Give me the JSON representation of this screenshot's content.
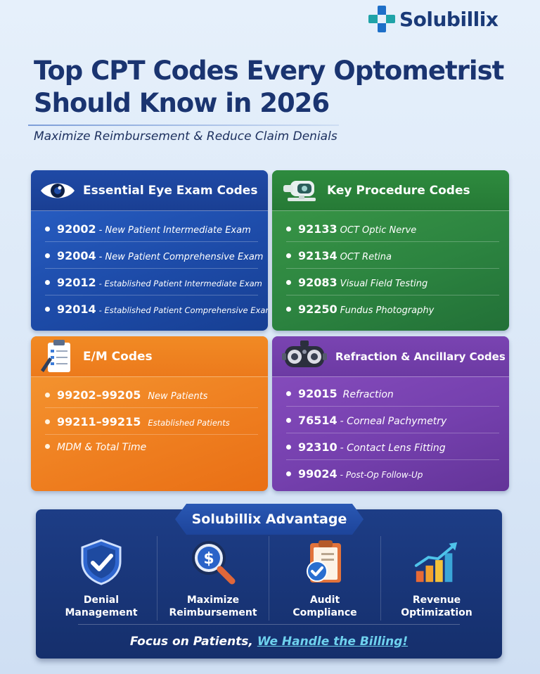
{
  "brand": {
    "name": "Solubillix"
  },
  "title": {
    "line1": "Top CPT Codes Every Optometrist",
    "line2": "Should Know in 2026"
  },
  "subtitle": "Maximize Reimbursement & Reduce Claim Denials",
  "colors": {
    "blue": "#1d4ba8",
    "green": "#2c8440",
    "orange": "#ef7f20",
    "purple": "#7540ae",
    "navy": "#152f6c",
    "accent": "#6fd2ee"
  },
  "cards": {
    "eye_exam": {
      "title": "Essential Eye Exam Codes",
      "icon": "eye-icon",
      "items": [
        {
          "code": "92002",
          "desc": "- New Patient Intermediate Exam"
        },
        {
          "code": "92004",
          "desc": "- New Patient  Comprehensive Exam"
        },
        {
          "code": "92012",
          "desc": "- Established Patient Intermediate Exam"
        },
        {
          "code": "92014",
          "desc": "- Established Patient Comprehensive Exam"
        }
      ]
    },
    "procedure": {
      "title": "Key Procedure Codes",
      "icon": "oct-scanner-icon",
      "items": [
        {
          "code": "92133",
          "desc": "OCT Optic Nerve"
        },
        {
          "code": "92134",
          "desc": "OCT Retina"
        },
        {
          "code": "92083",
          "desc": "Visual Field Testing"
        },
        {
          "code": "92250",
          "desc": "Fundus Photography"
        }
      ]
    },
    "em": {
      "title": "E/M Codes",
      "icon": "clipboard-icon",
      "items": [
        {
          "code": "99202–99205",
          "desc": "New Patients"
        },
        {
          "code": "99211–99215",
          "desc": "Established Patients"
        },
        {
          "code": "",
          "desc": "MDM & Total Time"
        }
      ]
    },
    "refraction": {
      "title": "Refraction & Ancillary Codes",
      "icon": "phoropter-icon",
      "items": [
        {
          "code": "92015",
          "desc": "Refraction"
        },
        {
          "code": "76514",
          "desc": "- Corneal Pachymetry"
        },
        {
          "code": "92310",
          "desc": "- Contact Lens Fitting"
        },
        {
          "code": "99024",
          "desc": "- Post-Op Follow-Up"
        }
      ]
    }
  },
  "advantage": {
    "title": "Solubillix Advantage",
    "items": [
      {
        "label": "Denial\nManagement",
        "icon": "shield-check-icon"
      },
      {
        "label": "Maximize\nReimbursement",
        "icon": "dollar-magnifier-icon"
      },
      {
        "label": "Audit\nCompliance",
        "icon": "clipboard-check-icon"
      },
      {
        "label": "Revenue\nOptimization",
        "icon": "bar-chart-growth-icon"
      }
    ],
    "footer_plain": "Focus on Patients, ",
    "footer_highlight": "We Handle the Billing!"
  }
}
